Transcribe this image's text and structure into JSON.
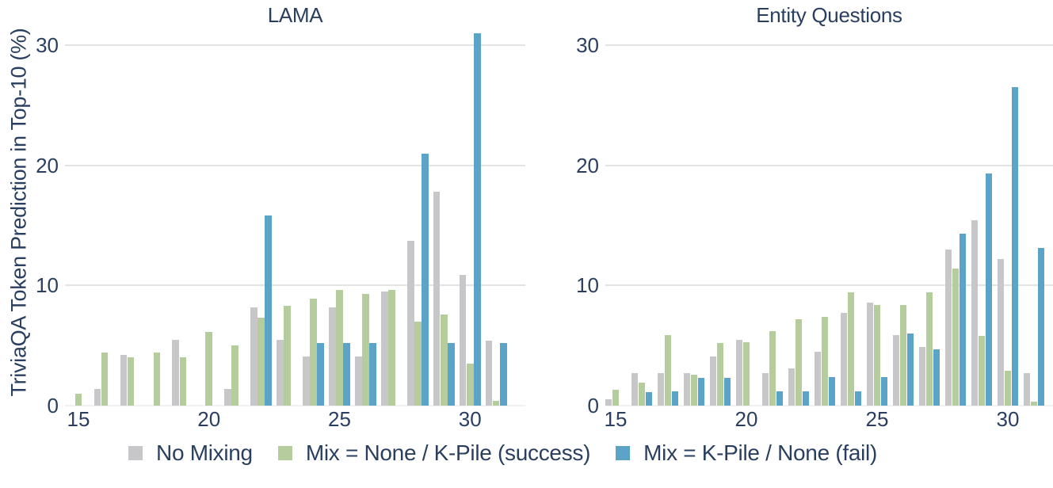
{
  "y_axis_title": "TriviaQA Token Prediction in Top-10 (%)",
  "colors": {
    "gray": "#c7c7c9",
    "green": "#b5cd9d",
    "blue": "#5ba3c7",
    "text": "#2a3f5f",
    "grid": "#e3e3e3"
  },
  "legend": [
    {
      "label": "No Mixing",
      "color_key": "gray"
    },
    {
      "label": "Mix = None / K-Pile (success)",
      "color_key": "green"
    },
    {
      "label": "Mix = K-Pile / None (fail)",
      "color_key": "blue"
    }
  ],
  "chart_data": [
    {
      "type": "bar",
      "title": "LAMA",
      "xlabel": "",
      "ylabel": "TriviaQA Token Prediction in Top-10 (%)",
      "x": [
        15,
        16,
        17,
        18,
        19,
        20,
        21,
        22,
        23,
        24,
        25,
        26,
        27,
        28,
        29,
        30,
        31
      ],
      "x_ticks": [
        15,
        20,
        25,
        30
      ],
      "y_ticks": [
        0,
        10,
        20,
        30
      ],
      "ylim": [
        0,
        32
      ],
      "grid": true,
      "legend_position": "bottom",
      "series": [
        {
          "name": "No Mixing",
          "color_key": "gray",
          "values": [
            0,
            1.4,
            4.2,
            0,
            5.5,
            0,
            1.4,
            8.2,
            5.5,
            4.1,
            8.2,
            4.1,
            9.5,
            13.7,
            17.8,
            10.9,
            5.4
          ]
        },
        {
          "name": "Mix = None / K-Pile (success)",
          "color_key": "green",
          "values": [
            1.0,
            4.4,
            4.0,
            4.4,
            4.0,
            6.1,
            5.0,
            7.3,
            8.3,
            8.9,
            9.6,
            9.3,
            9.6,
            7.0,
            7.6,
            3.5,
            0.4
          ]
        },
        {
          "name": "Mix = K-Pile / None (fail)",
          "color_key": "blue",
          "values": [
            0,
            0,
            0,
            0,
            0,
            0,
            0,
            15.8,
            0,
            5.2,
            5.2,
            5.2,
            0,
            21.0,
            5.2,
            31.0,
            5.2
          ]
        }
      ]
    },
    {
      "type": "bar",
      "title": "Entity Questions",
      "xlabel": "",
      "ylabel": "TriviaQA Token Prediction in Top-10 (%)",
      "x": [
        15,
        16,
        17,
        18,
        19,
        20,
        21,
        22,
        23,
        24,
        25,
        26,
        27,
        28,
        29,
        30,
        31
      ],
      "x_ticks": [
        15,
        20,
        25,
        30
      ],
      "y_ticks": [
        0,
        10,
        20,
        30
      ],
      "ylim": [
        0,
        32
      ],
      "grid": true,
      "legend_position": "bottom",
      "series": [
        {
          "name": "No Mixing",
          "color_key": "gray",
          "values": [
            0.5,
            2.7,
            2.7,
            2.7,
            4.1,
            5.5,
            2.7,
            3.1,
            4.5,
            7.7,
            8.6,
            5.9,
            4.9,
            13.0,
            15.4,
            12.2,
            2.7
          ]
        },
        {
          "name": "Mix = None / K-Pile (success)",
          "color_key": "green",
          "values": [
            1.3,
            1.9,
            5.9,
            2.6,
            5.2,
            5.3,
            6.2,
            7.2,
            7.4,
            9.4,
            8.4,
            8.4,
            9.4,
            11.4,
            5.8,
            2.9,
            0.3
          ]
        },
        {
          "name": "Mix = K-Pile / None (fail)",
          "color_key": "blue",
          "values": [
            0,
            1.1,
            1.2,
            2.3,
            2.3,
            0,
            1.2,
            1.2,
            2.4,
            1.2,
            2.4,
            6.0,
            4.7,
            14.3,
            19.3,
            26.5,
            13.1
          ]
        }
      ]
    }
  ]
}
